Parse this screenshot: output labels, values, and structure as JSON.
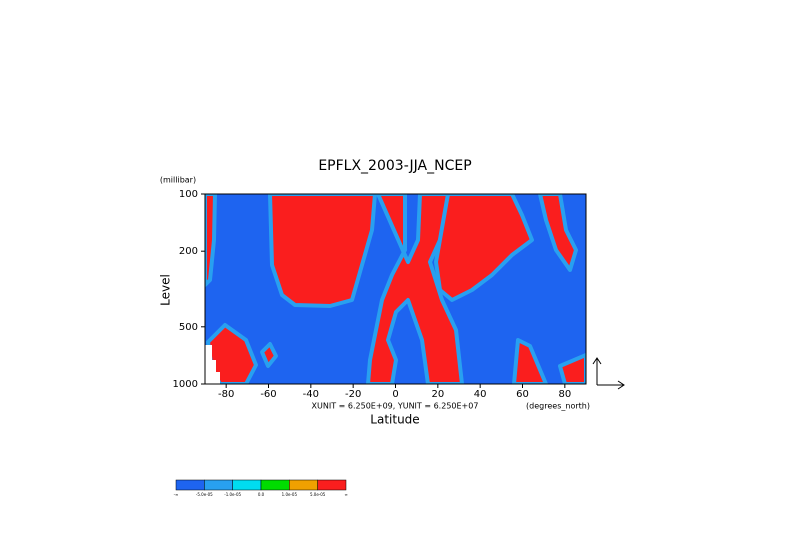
{
  "chart_data": {
    "type": "contour",
    "title": "EPFLX_2003-JJA_NCEP",
    "xlabel": "Latitude",
    "ylabel": "Level",
    "y_unit_label": "(millibar)",
    "x_unit_label": "(degrees_north)",
    "vector_scale_note": "XUNIT = 6.250E+09, YUNIT = 6.250E+07",
    "xlim": [
      -90,
      90
    ],
    "xticks": [
      -80,
      -60,
      -40,
      -20,
      0,
      20,
      40,
      60,
      80
    ],
    "ylim": [
      1000,
      100
    ],
    "yticks": [
      100,
      200,
      500,
      1000
    ],
    "log_y": true,
    "colorbar": {
      "colors": [
        "#1e64f0",
        "#28a0f0",
        "#00dcf0",
        "#00dc00",
        "#f0a000",
        "#fa1e1e"
      ],
      "labels": [
        "-∞",
        "-5.0e-05",
        "-1.0e-05",
        "0.0",
        "1.0e-05",
        "5.0e-05",
        "∞"
      ]
    }
  }
}
